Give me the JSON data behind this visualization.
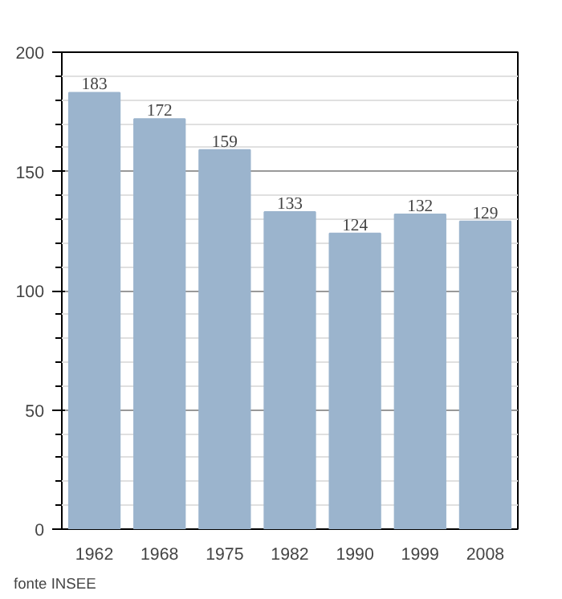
{
  "chart_data": {
    "type": "bar",
    "categories": [
      "1962",
      "1968",
      "1975",
      "1982",
      "1990",
      "1999",
      "2008"
    ],
    "values": [
      183,
      172,
      159,
      133,
      124,
      132,
      129
    ],
    "color": "#9bb4cd",
    "data_labels": true,
    "ylim": [
      0,
      200
    ],
    "yticks": [
      0,
      50,
      100,
      150,
      200
    ],
    "grid": "y",
    "annotations": [
      "fonte INSEE"
    ]
  }
}
